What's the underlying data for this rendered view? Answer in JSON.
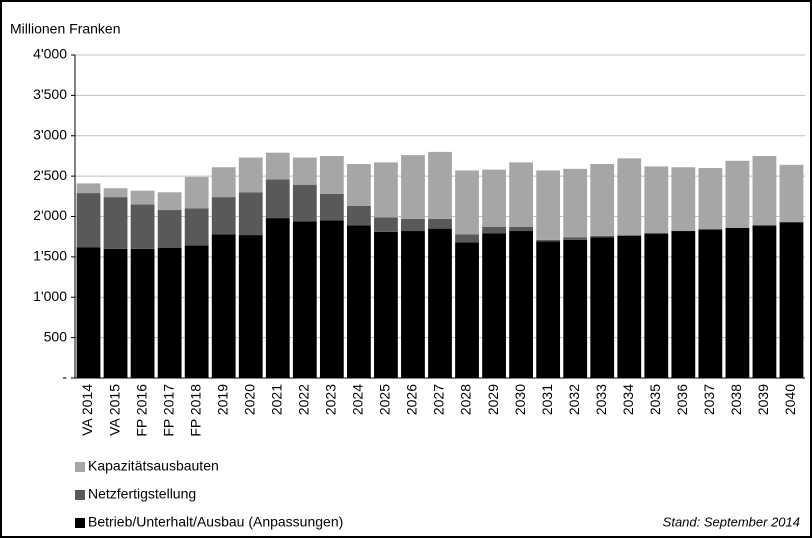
{
  "chart_data": {
    "type": "stacked_bar",
    "y_label": "Millionen Franken",
    "annotation": "Stand: September 2014",
    "categories": [
      "VA 2014",
      "VA 2015",
      "FP 2016",
      "FP 2017",
      "FP 2018",
      "2019",
      "2020",
      "2021",
      "2022",
      "2023",
      "2024",
      "2025",
      "2026",
      "2027",
      "2028",
      "2029",
      "2030",
      "2031",
      "2032",
      "2033",
      "2034",
      "2035",
      "2036",
      "2037",
      "2038",
      "2039",
      "2040"
    ],
    "series": [
      {
        "name": "Betrieb/Unterhalt/Ausbau (Anpassungen)",
        "color": "#000000",
        "values": [
          1620,
          1600,
          1600,
          1610,
          1640,
          1780,
          1770,
          1980,
          1940,
          1950,
          1890,
          1810,
          1820,
          1850,
          1680,
          1790,
          1820,
          1690,
          1710,
          1740,
          1760,
          1790,
          1820,
          1840,
          1860,
          1890,
          1930
        ]
      },
      {
        "name": "Netzfertigstellung",
        "color": "#595959",
        "values": [
          670,
          640,
          550,
          470,
          460,
          460,
          530,
          480,
          450,
          330,
          240,
          180,
          150,
          120,
          100,
          80,
          50,
          20,
          30,
          20,
          10,
          0,
          0,
          0,
          0,
          0,
          0
        ]
      },
      {
        "name": "Kapazitätsausbauten",
        "color": "#a6a6a6",
        "values": [
          120,
          110,
          170,
          220,
          390,
          370,
          430,
          330,
          340,
          470,
          520,
          680,
          790,
          830,
          790,
          710,
          800,
          860,
          850,
          890,
          950,
          830,
          790,
          760,
          830,
          860,
          710
        ]
      }
    ],
    "ylim": [
      0,
      4000
    ],
    "yticks": [
      {
        "value": 0,
        "label": "-"
      },
      500,
      {
        "value": 1000,
        "label": "1'000"
      },
      {
        "value": 1500,
        "label": "1'500"
      },
      {
        "value": 2000,
        "label": "2'000"
      },
      {
        "value": 2500,
        "label": "2'500"
      },
      {
        "value": 3000,
        "label": "3'000"
      },
      {
        "value": 3500,
        "label": "3'500"
      },
      {
        "value": 4000,
        "label": "4'000"
      }
    ],
    "grid": true
  }
}
